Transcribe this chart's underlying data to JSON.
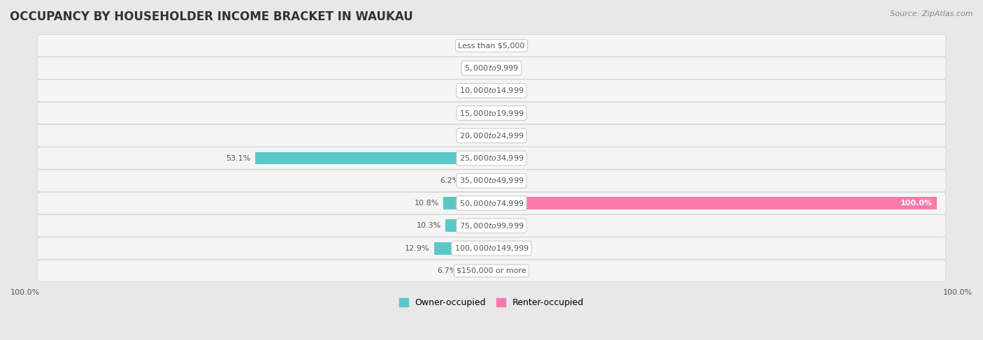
{
  "title": "OCCUPANCY BY HOUSEHOLDER INCOME BRACKET IN WAUKAU",
  "source": "Source: ZipAtlas.com",
  "categories": [
    "Less than $5,000",
    "$5,000 to $9,999",
    "$10,000 to $14,999",
    "$15,000 to $19,999",
    "$20,000 to $24,999",
    "$25,000 to $34,999",
    "$35,000 to $49,999",
    "$50,000 to $74,999",
    "$75,000 to $99,999",
    "$100,000 to $149,999",
    "$150,000 or more"
  ],
  "owner_values": [
    0.0,
    0.0,
    0.0,
    0.0,
    0.0,
    53.1,
    6.2,
    10.8,
    10.3,
    12.9,
    6.7
  ],
  "renter_values": [
    0.0,
    0.0,
    0.0,
    0.0,
    0.0,
    0.0,
    0.0,
    100.0,
    0.0,
    0.0,
    0.0
  ],
  "owner_color": "#5bc8c8",
  "renter_color": "#f87aac",
  "background_color": "#e8e8e8",
  "bar_bg_color": "#f5f5f5",
  "row_border_color": "#d0d0d0",
  "label_color": "#555555",
  "title_color": "#333333",
  "legend_owner": "Owner-occupied",
  "legend_renter": "Renter-occupied",
  "max_value": 100.0,
  "bar_height": 0.55,
  "title_fontsize": 12,
  "label_fontsize": 8,
  "category_fontsize": 8,
  "source_fontsize": 8
}
